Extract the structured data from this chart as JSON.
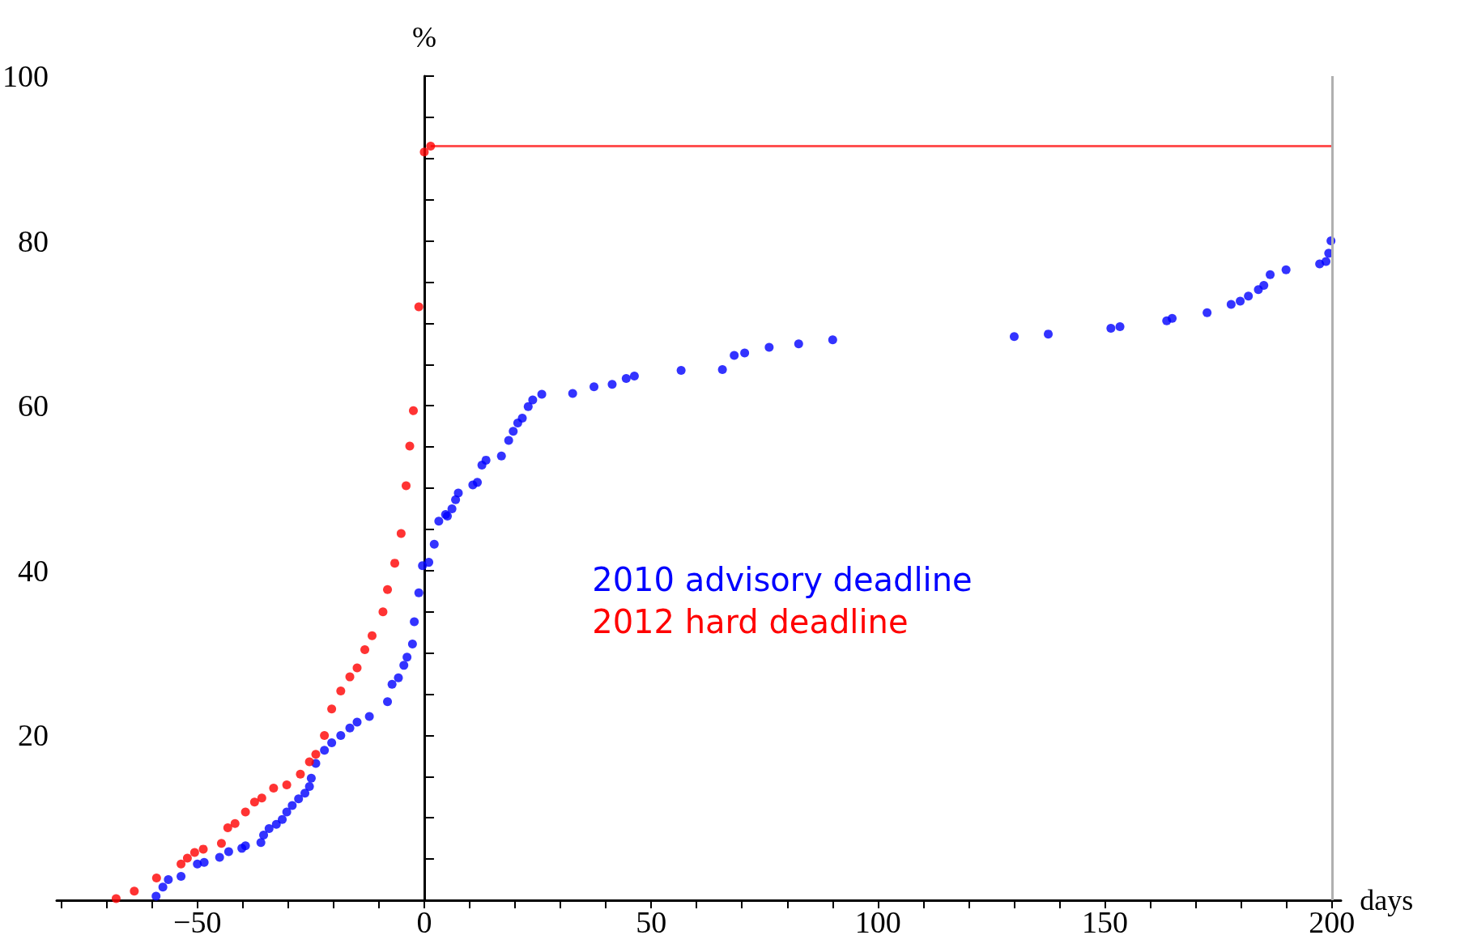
{
  "chart_data": {
    "type": "scatter",
    "xlabel": "days",
    "ylabel": "%",
    "marker": "circle",
    "grid": false,
    "legend": "bottom",
    "xlim": [
      -81,
      202
    ],
    "ylim": [
      0,
      100
    ],
    "xticks": [
      {
        "value": -80,
        "label": null
      },
      {
        "value": -70,
        "label": null
      },
      {
        "value": -60,
        "label": null
      },
      {
        "value": -50,
        "label": "−50"
      },
      {
        "value": -40,
        "label": null
      },
      {
        "value": -30,
        "label": null
      },
      {
        "value": -20,
        "label": null
      },
      {
        "value": -10,
        "label": null
      },
      0,
      {
        "value": 10,
        "label": null
      },
      {
        "value": 20,
        "label": null
      },
      {
        "value": 30,
        "label": null
      },
      {
        "value": 40,
        "label": null
      },
      50,
      {
        "value": 60,
        "label": null
      },
      {
        "value": 70,
        "label": null
      },
      {
        "value": 80,
        "label": null
      },
      {
        "value": 90,
        "label": null
      },
      100,
      {
        "value": 110,
        "label": null
      },
      {
        "value": 120,
        "label": null
      },
      {
        "value": 130,
        "label": null
      },
      {
        "value": 140,
        "label": null
      },
      150,
      {
        "value": 160,
        "label": null
      },
      {
        "value": 170,
        "label": null
      },
      {
        "value": 180,
        "label": null
      },
      {
        "value": 190,
        "label": null
      },
      200
    ],
    "yticks": [
      {
        "value": 0,
        "label": null
      },
      {
        "value": 5,
        "label": null
      },
      {
        "value": 10,
        "label": null
      },
      {
        "value": 15,
        "label": null
      },
      20,
      {
        "value": 25,
        "label": null
      },
      {
        "value": 30,
        "label": null
      },
      {
        "value": 35,
        "label": null
      },
      40,
      {
        "value": 45,
        "label": null
      },
      {
        "value": 50,
        "label": null
      },
      {
        "value": 55,
        "label": null
      },
      60,
      {
        "value": 65,
        "label": null
      },
      {
        "value": 70,
        "label": null
      },
      {
        "value": 75,
        "label": null
      },
      80,
      {
        "value": 85,
        "label": null
      },
      {
        "value": 90,
        "label": null
      },
      {
        "value": 95,
        "label": null
      },
      100
    ],
    "series": [
      {
        "name": "2010 advisory deadline",
        "color": "#0000ff",
        "x": [
          -59.1,
          -57.6,
          -56.4,
          -53.6,
          -50,
          -48.5,
          -45.1,
          -43.1,
          -40.2,
          -39.4,
          -36,
          -35.4,
          -34.2,
          -32.6,
          -31.3,
          -30.3,
          -29.1,
          -27.7,
          -26.3,
          -25.3,
          -24.9,
          -23.9,
          -22,
          -20.4,
          -18.4,
          -16.4,
          -14.8,
          -12.1,
          -8.1,
          -7.1,
          -5.7,
          -4.5,
          -3.8,
          -2.6,
          -2.2,
          -1.2,
          -0.4,
          1,
          2.2,
          3.2,
          4.7,
          5.1,
          6.1,
          6.9,
          7.5,
          10.7,
          11.7,
          12.7,
          13.6,
          17,
          18.6,
          19.6,
          20.6,
          21.6,
          22.9,
          23.9,
          25.9,
          32.7,
          37.4,
          41.4,
          44.5,
          46.3,
          56.6,
          65.7,
          68.3,
          70.6,
          76,
          82.5,
          90,
          130,
          137.5,
          151.3,
          153.3,
          163.6,
          164.8,
          172.5,
          177.8,
          179.8,
          181.6,
          183.8,
          185,
          186.4,
          189.9,
          197.3,
          198.7,
          199.3,
          199.8
        ],
        "values": [
          0.5,
          1.6,
          2.5,
          2.9,
          4.4,
          4.6,
          5.2,
          5.9,
          6.3,
          6.6,
          7,
          7.9,
          8.7,
          9.2,
          9.8,
          10.7,
          11.5,
          12.3,
          13,
          13.8,
          14.8,
          16.6,
          18.2,
          19.1,
          20,
          20.9,
          21.6,
          22.3,
          24.1,
          26.2,
          27,
          28.5,
          29.5,
          31.1,
          33.8,
          37.3,
          40.6,
          41,
          43.2,
          46,
          46.8,
          46.6,
          47.5,
          48.6,
          49.4,
          50.4,
          50.7,
          52.8,
          53.4,
          53.9,
          55.8,
          56.9,
          57.9,
          58.5,
          59.9,
          60.7,
          61.4,
          61.5,
          62.3,
          62.6,
          63.3,
          63.6,
          64.3,
          64.4,
          66.1,
          66.4,
          67.1,
          67.5,
          68,
          68.4,
          68.7,
          69.4,
          69.6,
          70.3,
          70.6,
          71.3,
          72.3,
          72.7,
          73.3,
          74.1,
          74.6,
          75.9,
          76.5,
          77.2,
          77.5,
          78.5,
          80
        ]
      },
      {
        "name": "2012 hard deadline",
        "color": "#ff0000",
        "x": [
          -67.9,
          -63.9,
          -59,
          -53.6,
          -52.2,
          -50.6,
          -48.7,
          -44.7,
          -43.3,
          -41.7,
          -39.4,
          -37.4,
          -35.8,
          -33.2,
          -30.3,
          -27.3,
          -25.3,
          -23.9,
          -22,
          -20.4,
          -18.4,
          -16.4,
          -14.8,
          -13.1,
          -11.5,
          -9.1,
          -8.1,
          -6.5,
          -5.1,
          -4,
          -3.2,
          -2.4,
          -1.2,
          0,
          1.4
        ],
        "values": [
          0.2,
          1.1,
          2.7,
          4.4,
          5.1,
          5.8,
          6.2,
          6.9,
          8.8,
          9.3,
          10.7,
          11.9,
          12.4,
          13.6,
          14,
          15.3,
          16.8,
          17.7,
          20,
          23.2,
          25.4,
          27.1,
          28.2,
          30.4,
          32.1,
          35,
          37.7,
          40.9,
          44.5,
          50.3,
          55.1,
          59.4,
          72,
          90.8,
          91.5
        ]
      },
      {
        "type": "line",
        "color": "#ff5050",
        "marker": "none",
        "x": [
          1.4,
          200
        ],
        "values": [
          91.5,
          91.5
        ]
      }
    ],
    "ref_lines": [
      {
        "axis": "x",
        "value": 200,
        "color": "#b0b0b0"
      }
    ]
  }
}
